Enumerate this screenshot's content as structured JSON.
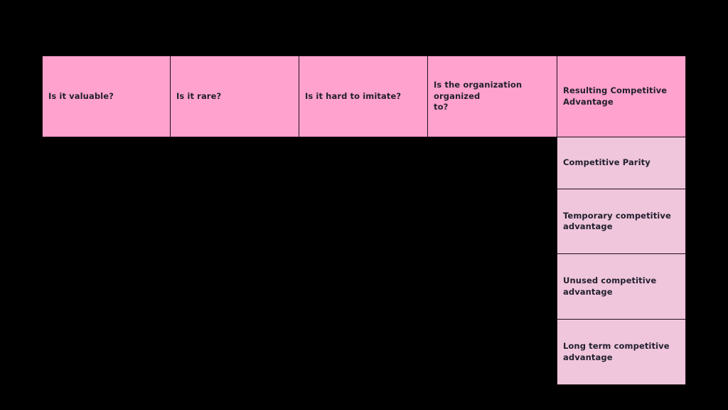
{
  "diagram": {
    "type": "vrio-framework-table",
    "headers": [
      {
        "label": "Is it valuable?"
      },
      {
        "label": "Is it rare?"
      },
      {
        "label": "Is it hard to imitate?"
      },
      {
        "label": "Is the organization organized\nto?"
      },
      {
        "label": "Resulting Competitive\nAdvantage"
      }
    ],
    "results": [
      {
        "label": "Competitive Parity"
      },
      {
        "label": "Temporary competitive\nadvantage"
      },
      {
        "label": "Unused competitive\nadvantage"
      },
      {
        "label": "Long term competitive\nadvantage"
      }
    ]
  },
  "colors": {
    "canvas_bg": "#000000",
    "header_bg": "#ffa2cd",
    "result_bg": "#f0c6dc",
    "border": "#1e0e18",
    "text": "#201f2d"
  }
}
